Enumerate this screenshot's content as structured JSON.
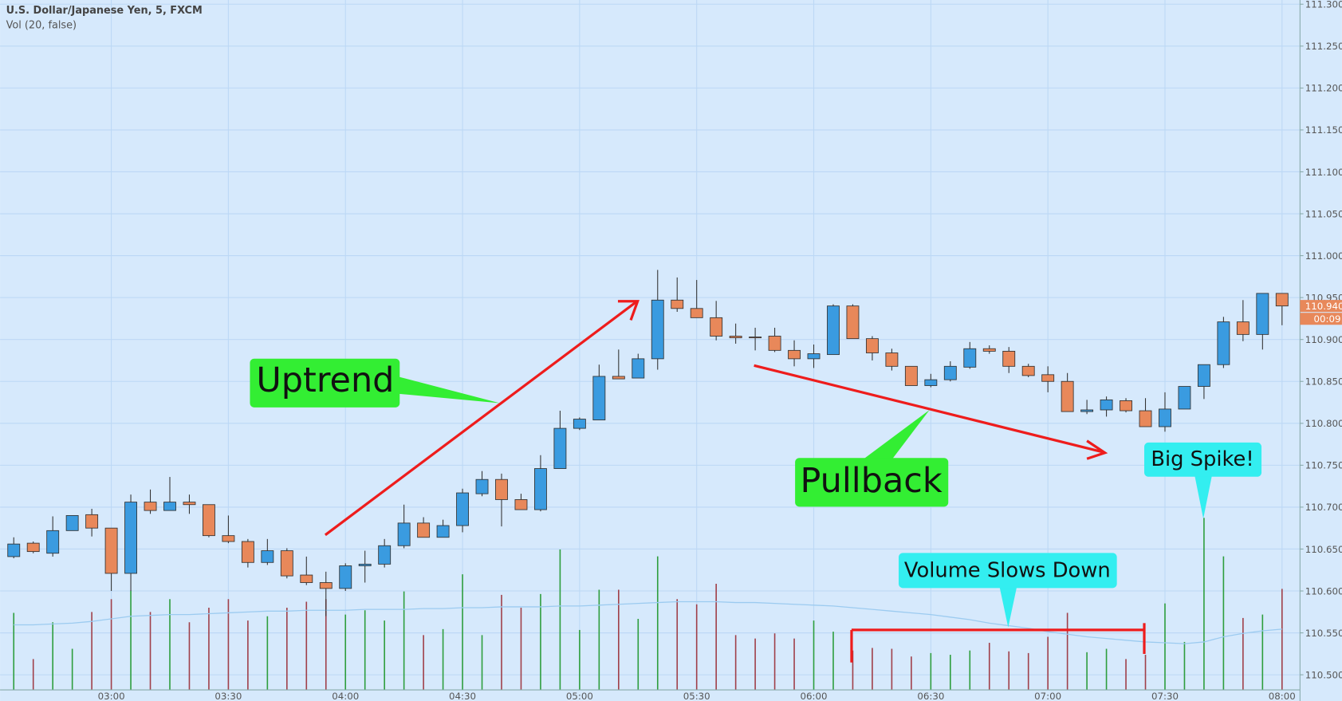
{
  "chart_data": {
    "type": "candlestick",
    "title": "U.S. Dollar/Japanese Yen, 5, FXCM",
    "subtitle": "Vol (20, false)",
    "categories": [
      null,
      null,
      null,
      null,
      null,
      "03:00",
      null,
      null,
      null,
      null,
      null,
      "03:30",
      null,
      null,
      null,
      null,
      null,
      "04:00",
      null,
      null,
      null,
      null,
      null,
      "04:30",
      null,
      null,
      null,
      null,
      null,
      "05:00",
      null,
      null,
      null,
      null,
      null,
      "05:30",
      null,
      null,
      null,
      null,
      null,
      "06:00",
      null,
      null,
      null,
      null,
      null,
      "06:30",
      null,
      null,
      null,
      null,
      null,
      "07:00",
      null,
      null,
      null,
      null,
      null,
      "07:30",
      null,
      null,
      null,
      null,
      null,
      "08:00"
    ],
    "open": [
      110.641,
      110.657,
      110.645,
      110.672,
      110.691,
      110.675,
      110.621,
      110.706,
      110.696,
      110.706,
      110.703,
      110.666,
      110.659,
      110.634,
      110.648,
      110.619,
      110.61,
      110.603,
      110.63,
      110.632,
      110.654,
      110.681,
      110.664,
      110.678,
      110.716,
      110.733,
      110.709,
      110.697,
      110.746,
      110.794,
      110.804,
      110.856,
      110.854,
      110.877,
      110.947,
      110.937,
      110.926,
      110.904,
      110.903,
      110.904,
      110.887,
      110.877,
      110.882,
      110.94,
      110.901,
      110.884,
      110.868,
      110.845,
      110.852,
      110.867,
      110.889,
      110.886,
      110.868,
      110.858,
      110.85,
      110.814,
      110.816,
      110.827,
      110.815,
      110.796,
      110.817,
      110.844,
      110.87,
      110.921,
      110.906,
      110.955
    ],
    "high": [
      110.664,
      110.659,
      110.689,
      110.69,
      110.698,
      110.675,
      110.715,
      110.721,
      110.736,
      110.715,
      110.703,
      110.69,
      110.662,
      110.662,
      110.651,
      110.641,
      110.623,
      110.633,
      110.648,
      110.662,
      110.703,
      110.688,
      110.685,
      110.722,
      110.743,
      110.74,
      110.716,
      110.762,
      110.815,
      110.807,
      110.87,
      110.888,
      110.883,
      110.983,
      110.974,
      110.971,
      110.946,
      110.919,
      110.914,
      110.914,
      110.899,
      110.894,
      110.942,
      110.942,
      110.904,
      110.889,
      110.868,
      110.859,
      110.874,
      110.897,
      110.893,
      110.891,
      110.871,
      110.868,
      110.86,
      110.828,
      110.832,
      110.83,
      110.83,
      110.837,
      110.844,
      110.87,
      110.927,
      110.947,
      110.955,
      110.955
    ],
    "low": [
      110.639,
      110.645,
      110.641,
      110.672,
      110.665,
      110.6,
      110.6,
      110.692,
      110.696,
      110.692,
      110.664,
      110.657,
      110.628,
      110.631,
      110.615,
      110.607,
      110.57,
      110.6,
      110.61,
      110.628,
      110.651,
      110.664,
      110.664,
      110.67,
      110.713,
      110.677,
      110.697,
      110.695,
      110.746,
      110.792,
      110.804,
      110.853,
      110.854,
      110.864,
      110.933,
      110.926,
      110.899,
      110.895,
      110.887,
      110.885,
      110.868,
      110.866,
      110.882,
      110.901,
      110.875,
      110.863,
      110.845,
      110.843,
      110.85,
      110.865,
      110.883,
      110.86,
      110.855,
      110.837,
      110.814,
      110.811,
      110.808,
      110.813,
      110.796,
      110.79,
      110.817,
      110.829,
      110.866,
      110.898,
      110.888,
      110.917
    ],
    "close": [
      110.656,
      110.647,
      110.672,
      110.69,
      110.675,
      110.621,
      110.706,
      110.696,
      110.706,
      110.703,
      110.666,
      110.659,
      110.634,
      110.648,
      110.618,
      110.61,
      110.603,
      110.63,
      110.632,
      110.654,
      110.681,
      110.664,
      110.678,
      110.717,
      110.733,
      110.709,
      110.697,
      110.746,
      110.794,
      110.805,
      110.856,
      110.853,
      110.877,
      110.947,
      110.937,
      110.926,
      110.904,
      110.902,
      110.902,
      110.887,
      110.877,
      110.883,
      110.94,
      110.901,
      110.884,
      110.868,
      110.845,
      110.852,
      110.868,
      110.889,
      110.886,
      110.868,
      110.857,
      110.85,
      110.814,
      110.816,
      110.828,
      110.815,
      110.796,
      110.817,
      110.844,
      110.87,
      110.921,
      110.906,
      110.955,
      110.94
    ],
    "volume": [
      90,
      36,
      79,
      48,
      91,
      106,
      116,
      91,
      106,
      79,
      96,
      106,
      81,
      86,
      96,
      103,
      106,
      88,
      93,
      81,
      115,
      64,
      71,
      135,
      64,
      111,
      96,
      112,
      164,
      70,
      117,
      117,
      83,
      156,
      106,
      100,
      124,
      64,
      60,
      66,
      60,
      81,
      68,
      46,
      49,
      48,
      39,
      43,
      41,
      46,
      55,
      45,
      43,
      62,
      90,
      44,
      48,
      36,
      41,
      101,
      56,
      201,
      156,
      84,
      88,
      118
    ],
    "volume_ma": [
      76,
      76,
      77,
      78,
      80,
      83,
      86,
      87,
      88,
      88,
      89,
      90,
      91,
      92,
      92,
      93,
      93,
      93,
      94,
      94,
      94,
      95,
      95,
      96,
      96,
      97,
      97,
      97,
      98,
      98,
      99,
      100,
      101,
      102,
      103,
      103,
      103,
      102,
      102,
      101,
      100,
      99,
      98,
      96,
      94,
      92,
      90,
      88,
      85,
      82,
      78,
      75,
      72,
      68,
      65,
      62,
      60,
      58,
      56,
      55,
      54,
      56,
      62,
      66,
      69,
      71
    ],
    "volume_lim": [
      0,
      250
    ],
    "up_color": "#3a9be0",
    "down_color": "#e8885a",
    "volume_up_color": "#2e9e3e",
    "volume_down_color": "#a0404a",
    "volume_ma_color": "#9ccbf0",
    "ylim": [
      110.482,
      111.305
    ],
    "yticks": [
      {
        "value": 110.5,
        "label": "110.500"
      },
      {
        "value": 110.55,
        "label": "110.550"
      },
      {
        "value": 110.6,
        "label": "110.600"
      },
      {
        "value": 110.65,
        "label": "110.650"
      },
      {
        "value": 110.7,
        "label": "110.700"
      },
      {
        "value": 110.75,
        "label": "110.750"
      },
      {
        "value": 110.8,
        "label": "110.800"
      },
      {
        "value": 110.85,
        "label": "110.850"
      },
      {
        "value": 110.9,
        "label": "110.900"
      },
      {
        "value": 110.95,
        "label": "110.950"
      },
      {
        "value": 111.0,
        "label": "111.000"
      },
      {
        "value": 111.05,
        "label": "111.050"
      },
      {
        "value": 111.1,
        "label": "111.100"
      },
      {
        "value": 111.15,
        "label": "111.150"
      },
      {
        "value": 111.2,
        "label": "111.200"
      },
      {
        "value": 111.25,
        "label": "111.250"
      },
      {
        "value": 111.3,
        "label": "111.300"
      }
    ],
    "grid": true,
    "last_price": {
      "value": 110.94,
      "label": "110.940"
    },
    "countdown": "00:09",
    "annotations": [
      "Uptrend",
      "Pullback",
      "Volume Slows Down",
      "Big Spike!"
    ]
  }
}
